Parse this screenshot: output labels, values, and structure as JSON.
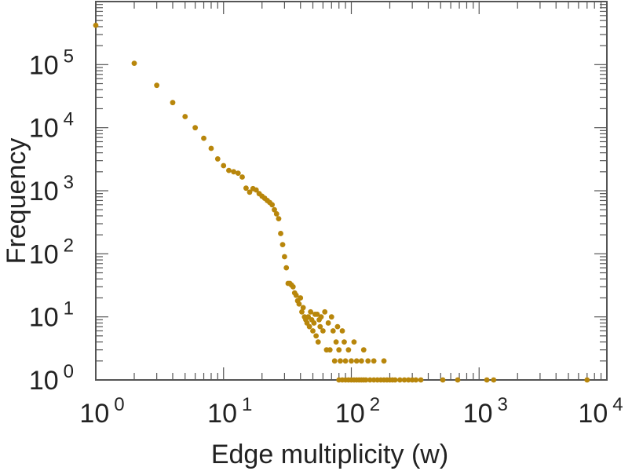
{
  "chart_data": {
    "type": "scatter",
    "xlabel": "Edge multiplicity (w)",
    "ylabel": "Frequency",
    "xscale": "log",
    "yscale": "log",
    "xlim": [
      1,
      10000
    ],
    "ylim": [
      1,
      1000000
    ],
    "grid": false,
    "marker_color": "#b8860b",
    "x_ticks": [
      {
        "base": "10",
        "exp": "0"
      },
      {
        "base": "10",
        "exp": "1"
      },
      {
        "base": "10",
        "exp": "2"
      },
      {
        "base": "10",
        "exp": "3"
      },
      {
        "base": "10",
        "exp": "4"
      }
    ],
    "y_ticks": [
      {
        "base": "10",
        "exp": "0"
      },
      {
        "base": "10",
        "exp": "1"
      },
      {
        "base": "10",
        "exp": "2"
      },
      {
        "base": "10",
        "exp": "3"
      },
      {
        "base": "10",
        "exp": "4"
      },
      {
        "base": "10",
        "exp": "5"
      }
    ],
    "points": [
      [
        1,
        420000
      ],
      [
        2,
        105000
      ],
      [
        3,
        47000
      ],
      [
        4,
        25000
      ],
      [
        5,
        15000
      ],
      [
        6,
        10000
      ],
      [
        7,
        6800
      ],
      [
        8,
        4700
      ],
      [
        9,
        3200
      ],
      [
        10,
        2500
      ],
      [
        11,
        2100
      ],
      [
        12,
        2000
      ],
      [
        13,
        1900
      ],
      [
        14,
        1650
      ],
      [
        15,
        1100
      ],
      [
        16,
        950
      ],
      [
        17,
        1080
      ],
      [
        18,
        1030
      ],
      [
        19,
        900
      ],
      [
        20,
        820
      ],
      [
        21,
        760
      ],
      [
        22,
        700
      ],
      [
        23,
        650
      ],
      [
        24,
        600
      ],
      [
        25,
        500
      ],
      [
        26,
        430
      ],
      [
        27,
        360
      ],
      [
        28,
        210
      ],
      [
        29,
        140
      ],
      [
        30,
        90
      ],
      [
        31,
        60
      ],
      [
        32,
        34
      ],
      [
        33,
        34
      ],
      [
        34,
        32
      ],
      [
        35,
        30
      ],
      [
        36,
        24
      ],
      [
        37,
        22
      ],
      [
        38,
        18
      ],
      [
        39,
        16
      ],
      [
        40,
        20
      ],
      [
        41,
        12
      ],
      [
        42,
        14
      ],
      [
        43,
        10
      ],
      [
        44,
        9
      ],
      [
        45,
        8
      ],
      [
        46,
        10
      ],
      [
        47,
        7
      ],
      [
        48,
        12
      ],
      [
        49,
        9
      ],
      [
        50,
        6
      ],
      [
        51,
        8
      ],
      [
        52,
        11
      ],
      [
        53,
        5
      ],
      [
        54,
        11
      ],
      [
        55,
        4
      ],
      [
        56,
        9
      ],
      [
        57,
        7
      ],
      [
        58,
        10
      ],
      [
        60,
        6
      ],
      [
        62,
        12
      ],
      [
        64,
        3
      ],
      [
        66,
        8
      ],
      [
        68,
        3
      ],
      [
        70,
        10
      ],
      [
        72,
        6
      ],
      [
        74,
        2
      ],
      [
        76,
        4
      ],
      [
        78,
        7
      ],
      [
        80,
        3
      ],
      [
        82,
        2
      ],
      [
        85,
        6
      ],
      [
        88,
        4
      ],
      [
        90,
        2
      ],
      [
        95,
        3
      ],
      [
        100,
        2
      ],
      [
        105,
        4
      ],
      [
        110,
        2
      ],
      [
        120,
        2
      ],
      [
        125,
        3
      ],
      [
        135,
        2
      ],
      [
        150,
        2
      ],
      [
        180,
        2
      ],
      [
        80,
        1
      ],
      [
        85,
        1
      ],
      [
        90,
        1
      ],
      [
        95,
        1
      ],
      [
        100,
        1
      ],
      [
        105,
        1
      ],
      [
        110,
        1
      ],
      [
        115,
        1
      ],
      [
        120,
        1
      ],
      [
        125,
        1
      ],
      [
        130,
        1
      ],
      [
        140,
        1
      ],
      [
        150,
        1
      ],
      [
        160,
        1
      ],
      [
        170,
        1
      ],
      [
        180,
        1
      ],
      [
        190,
        1
      ],
      [
        200,
        1
      ],
      [
        210,
        1
      ],
      [
        220,
        1
      ],
      [
        240,
        1
      ],
      [
        260,
        1
      ],
      [
        280,
        1
      ],
      [
        300,
        1
      ],
      [
        320,
        1
      ],
      [
        350,
        1
      ],
      [
        520,
        1
      ],
      [
        680,
        1
      ],
      [
        1150,
        1
      ],
      [
        1300,
        1
      ],
      [
        7000,
        1
      ]
    ]
  }
}
